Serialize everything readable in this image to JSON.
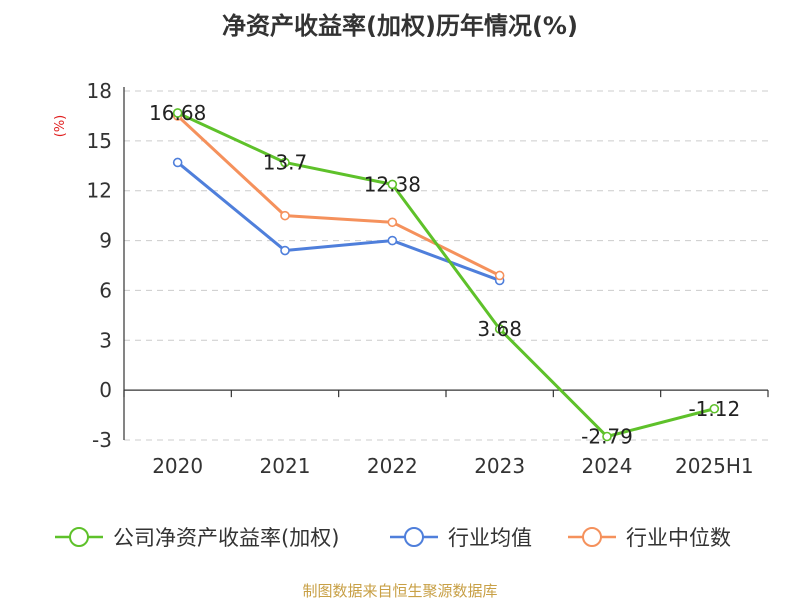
{
  "chart_data": {
    "type": "line",
    "title": "净资产收益率(加权)历年情况(%)",
    "ylabel": "(%)",
    "categories": [
      "2020",
      "2021",
      "2022",
      "2023",
      "2024",
      "2025H1"
    ],
    "yticks": [
      "18",
      "15",
      "12",
      "9",
      "6",
      "3",
      "0",
      "-3"
    ],
    "ylim": [
      -3,
      18
    ],
    "grid": true,
    "legend_position": "bottom",
    "series": [
      {
        "name": "公司净资产收益率(加权)",
        "color": "#5ec12a",
        "values": [
          16.68,
          13.7,
          12.38,
          3.68,
          -2.79,
          -1.12
        ],
        "labels": [
          "16.68",
          "13.7",
          "12.38",
          "3.68",
          "-2.79",
          "-1.12"
        ]
      },
      {
        "name": "行业均值",
        "color": "#4f7fdb",
        "values": [
          13.7,
          8.4,
          9.0,
          6.6,
          null,
          null
        ]
      },
      {
        "name": "行业中位数",
        "color": "#f5915c",
        "values": [
          16.5,
          10.5,
          10.1,
          6.9,
          null,
          null
        ]
      }
    ]
  },
  "source_text": "制图数据来自恒生聚源数据库",
  "colors": {
    "title": "#333333",
    "ylabel": "#e02020",
    "source": "#c8a046",
    "grid": "#cccccc",
    "axis": "#333333"
  }
}
